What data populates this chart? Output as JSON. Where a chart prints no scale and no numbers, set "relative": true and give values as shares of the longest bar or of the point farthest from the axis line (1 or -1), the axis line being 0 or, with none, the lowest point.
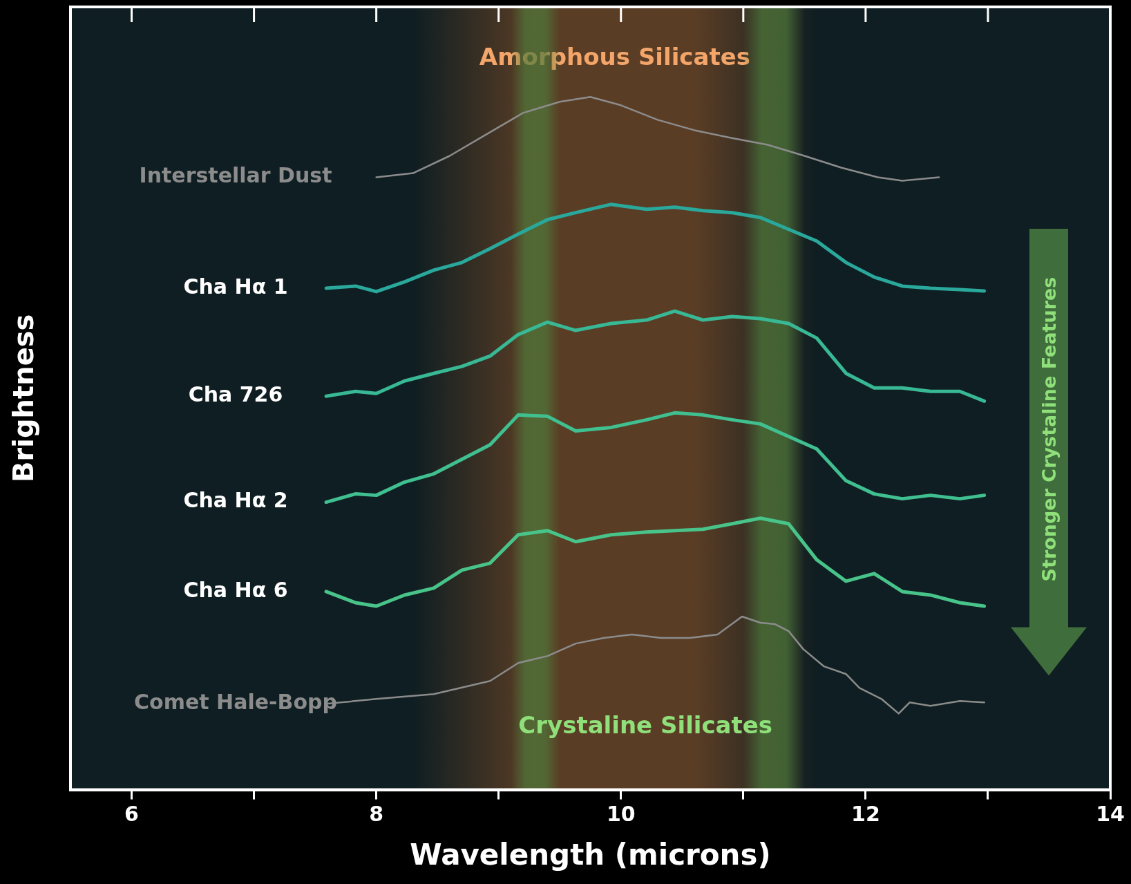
{
  "chart_data": {
    "type": "line",
    "relative": true,
    "xlabel": "Wavelength (microns)",
    "ylabel": "Brightness",
    "xlim": [
      5.5,
      14
    ],
    "xticks": [
      6,
      {
        "value": 7,
        "label": null
      },
      8,
      {
        "value": 9,
        "label": null
      },
      10,
      {
        "value": 11,
        "label": null
      },
      12,
      {
        "value": 13,
        "label": null
      },
      14
    ],
    "grid": false,
    "legend": false,
    "marker": "none",
    "line_style": "solid",
    "bands": [
      {
        "axis": "x",
        "from": 8.3,
        "to": 11.6,
        "label": "Amorphous Silicates",
        "color": "#7a4a26"
      },
      {
        "axis": "x",
        "from": 9.1,
        "to": 9.5,
        "label": null,
        "color": "#4f7a3a"
      },
      {
        "axis": "x",
        "from": 11.0,
        "to": 11.5,
        "label": null,
        "color": "#4f7a3a"
      }
    ],
    "annotations": [
      "Crystaline Silicates",
      "Stronger Crystaline Features"
    ],
    "series": [
      {
        "name": "Interstellar Dust",
        "color": "#8c8c8c",
        "x": [
          8.0,
          8.3,
          8.6,
          8.9,
          9.2,
          9.5,
          9.75,
          10.0,
          10.3,
          10.6,
          10.9,
          11.2,
          11.5,
          11.8,
          12.1,
          12.3,
          12.6
        ],
        "values": [
          0.884,
          0.89,
          0.915,
          0.946,
          0.977,
          0.993,
          1,
          0.988,
          0.967,
          0.952,
          0.941,
          0.931,
          0.915,
          0.898,
          0.884,
          0.879,
          0.884
        ]
      },
      {
        "name": "Cha Hα 1",
        "color": "#2aa89c",
        "x": [
          7.59,
          7.83,
          8,
          8.23,
          8.47,
          8.7,
          8.93,
          9.16,
          9.4,
          9.63,
          9.92,
          10.21,
          10.44,
          10.67,
          10.91,
          11.14,
          11.37,
          11.6,
          11.84,
          12.07,
          12.3,
          12.53,
          12.77,
          12.97
        ],
        "values": [
          0.724,
          0.727,
          0.719,
          0.733,
          0.75,
          0.761,
          0.781,
          0.802,
          0.823,
          0.833,
          0.845,
          0.838,
          0.841,
          0.836,
          0.833,
          0.826,
          0.809,
          0.792,
          0.761,
          0.74,
          0.727,
          0.724,
          0.722,
          0.72
        ]
      },
      {
        "name": "Cha 726",
        "color": "#38b894",
        "x": [
          7.59,
          7.83,
          8,
          8.23,
          8.47,
          8.7,
          8.93,
          9.16,
          9.4,
          9.63,
          9.92,
          10.21,
          10.44,
          10.67,
          10.91,
          11.14,
          11.37,
          11.6,
          11.84,
          12.07,
          12.3,
          12.53,
          12.77,
          12.97
        ],
        "values": [
          0.568,
          0.575,
          0.572,
          0.59,
          0.601,
          0.611,
          0.626,
          0.657,
          0.675,
          0.663,
          0.673,
          0.678,
          0.691,
          0.678,
          0.683,
          0.68,
          0.673,
          0.652,
          0.601,
          0.58,
          0.58,
          0.575,
          0.575,
          0.561
        ]
      },
      {
        "name": "Cha Hα 2",
        "color": "#40c090",
        "x": [
          7.59,
          7.83,
          8,
          8.23,
          8.47,
          8.7,
          8.93,
          9.16,
          9.4,
          9.63,
          9.92,
          10.21,
          10.44,
          10.67,
          10.91,
          11.14,
          11.37,
          11.6,
          11.84,
          12.07,
          12.3,
          12.53,
          12.77,
          12.97
        ],
        "values": [
          0.415,
          0.427,
          0.425,
          0.444,
          0.456,
          0.477,
          0.498,
          0.541,
          0.539,
          0.518,
          0.523,
          0.534,
          0.544,
          0.541,
          0.534,
          0.528,
          0.51,
          0.492,
          0.446,
          0.427,
          0.42,
          0.425,
          0.42,
          0.425
        ]
      },
      {
        "name": "Cha Hα 6",
        "color": "#48c48a",
        "x": [
          7.59,
          7.83,
          8,
          8.23,
          8.47,
          8.7,
          8.93,
          9.16,
          9.4,
          9.63,
          9.92,
          10.21,
          10.44,
          10.67,
          10.91,
          11.14,
          11.37,
          11.6,
          11.84,
          12.07,
          12.3,
          12.53,
          12.77,
          12.97
        ],
        "values": [
          0.286,
          0.27,
          0.265,
          0.281,
          0.291,
          0.317,
          0.327,
          0.368,
          0.374,
          0.358,
          0.368,
          0.372,
          0.374,
          0.376,
          0.384,
          0.392,
          0.384,
          0.332,
          0.301,
          0.312,
          0.286,
          0.281,
          0.27,
          0.265
        ]
      },
      {
        "name": "Comet Hale-Bopp",
        "color": "#8c8c8c",
        "x": [
          7.59,
          8,
          8.47,
          8.93,
          9.16,
          9.4,
          9.63,
          9.86,
          10.09,
          10.33,
          10.56,
          10.79,
          10.99,
          11.14,
          11.26,
          11.37,
          11.49,
          11.66,
          11.84,
          11.95,
          12.13,
          12.27,
          12.36,
          12.53,
          12.77,
          12.97
        ],
        "values": [
          0.124,
          0.131,
          0.138,
          0.157,
          0.183,
          0.193,
          0.211,
          0.219,
          0.224,
          0.219,
          0.219,
          0.224,
          0.25,
          0.241,
          0.239,
          0.229,
          0.203,
          0.178,
          0.167,
          0.147,
          0.131,
          0.11,
          0.126,
          0.121,
          0.128,
          0.126
        ]
      }
    ]
  }
}
